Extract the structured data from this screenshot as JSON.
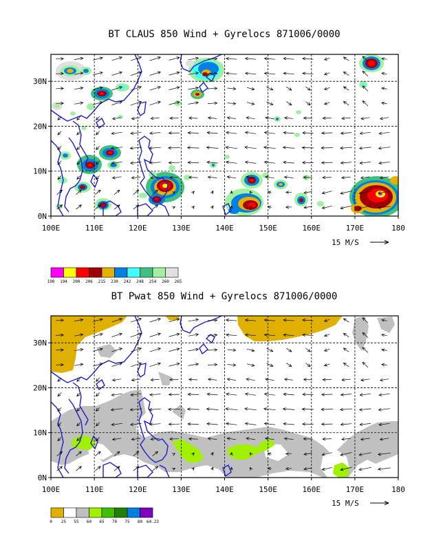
{
  "panels": [
    {
      "title": "BT CLAUS 850 Wind + Gyrelocs 871006/0000",
      "field": "brightness temperature (CLAUS)",
      "x_ticks": [
        "100E",
        "110E",
        "120E",
        "130E",
        "140E",
        "150E",
        "160E",
        "170E",
        "180"
      ],
      "y_ticks": [
        "0N",
        "10N",
        "20N",
        "30N"
      ],
      "vector_key": "15 M/S",
      "legend": {
        "levels": [
          "190",
          "194",
          "200",
          "206",
          "215",
          "230",
          "242",
          "248",
          "254",
          "260",
          "265"
        ],
        "colors": [
          "#ff00ff",
          "#ffff00",
          "#ff0000",
          "#a00000",
          "#e6b000",
          "#0080e0",
          "#40ffff",
          "#40c080",
          "#a0f0a0",
          "#e0e0e0"
        ]
      }
    },
    {
      "title": "BT Pwat 850 Wind + Gyrelocs 871006/0000",
      "field": "precipitable water",
      "x_ticks": [
        "100E",
        "110E",
        "120E",
        "130E",
        "140E",
        "150E",
        "160E",
        "170E",
        "180"
      ],
      "y_ticks": [
        "0N",
        "10N",
        "20N",
        "30N"
      ],
      "vector_key": "15 M/S",
      "legend": {
        "levels": [
          "0",
          "25",
          "55",
          "60",
          "65",
          "70",
          "75",
          "80",
          "64.23"
        ],
        "colors": [
          "#e0b000",
          "#ffffff",
          "#c0c0c0",
          "#a0f000",
          "#40c000",
          "#208000",
          "#0080e0",
          "#8000c0"
        ]
      }
    }
  ],
  "chart_data": [
    {
      "type": "heatmap",
      "title": "BT CLAUS 850 Wind + Gyrelocs 871006/0000",
      "xlim": [
        100,
        180
      ],
      "ylim": [
        0,
        36
      ],
      "xlabel": "",
      "ylabel": "",
      "x_ticks": [
        100,
        110,
        120,
        130,
        140,
        150,
        160,
        170,
        180
      ],
      "y_ticks": [
        0,
        10,
        20,
        30
      ],
      "colorbar_levels": [
        190,
        194,
        200,
        206,
        215,
        230,
        242,
        248,
        254,
        260,
        265
      ],
      "cold_cloud_regions": [
        {
          "lon": 104.5,
          "lat": 32,
          "min_bt": 215
        },
        {
          "lon": 108,
          "lat": 31,
          "min_bt": 206
        },
        {
          "lon": 111.5,
          "lat": 27.5,
          "min_bt": 200
        },
        {
          "lon": 114,
          "lat": 29,
          "min_bt": 230
        },
        {
          "lon": 109.5,
          "lat": 12,
          "min_bt": 206
        },
        {
          "lon": 113.5,
          "lat": 14.5,
          "min_bt": 206
        },
        {
          "lon": 106.5,
          "lat": 6.5,
          "min_bt": 215
        },
        {
          "lon": 112,
          "lat": 2.5,
          "min_bt": 206
        },
        {
          "lon": 126.5,
          "lat": 7,
          "min_bt": 194
        },
        {
          "lon": 124.5,
          "lat": 4.5,
          "min_bt": 200
        },
        {
          "lon": 137,
          "lat": 32.5,
          "min_bt": 206
        },
        {
          "lon": 134,
          "lat": 27,
          "min_bt": 215
        },
        {
          "lon": 144.5,
          "lat": 9,
          "min_bt": 206
        },
        {
          "lon": 146,
          "lat": 3.5,
          "min_bt": 200
        },
        {
          "lon": 155,
          "lat": 6.5,
          "min_bt": 215
        },
        {
          "lon": 158,
          "lat": 3.5,
          "min_bt": 206
        },
        {
          "lon": 173,
          "lat": 33.5,
          "min_bt": 200
        },
        {
          "lon": 174,
          "lat": 4.5,
          "min_bt": 200
        }
      ],
      "wind_vectors": "850 hPa wind",
      "vector_key": "15 M/S"
    },
    {
      "type": "heatmap",
      "title": "BT Pwat 850 Wind + Gyrelocs 871006/0000",
      "xlim": [
        100,
        180
      ],
      "ylim": [
        0,
        36
      ],
      "xlabel": "",
      "ylabel": "",
      "x_ticks": [
        100,
        110,
        120,
        130,
        140,
        150,
        160,
        170,
        180
      ],
      "y_ticks": [
        0,
        10,
        20,
        30
      ],
      "colorbar_levels": [
        0,
        25,
        55,
        60,
        65,
        70,
        75,
        80,
        64.23
      ],
      "regions": [
        {
          "lon": 101.5,
          "lat": 31,
          "category": "0-25"
        },
        {
          "lon": 148,
          "lat": 34,
          "category": "0-25"
        },
        {
          "lon": 140,
          "lat": 35.5,
          "category": "0-25"
        },
        {
          "lon": 110,
          "lat": 10,
          "category": "55-60"
        },
        {
          "lon": 135,
          "lat": 7,
          "category": "55-60"
        },
        {
          "lon": 150,
          "lat": 6,
          "category": "55-60"
        },
        {
          "lon": 171,
          "lat": 7,
          "category": "55-60"
        },
        {
          "lon": 108,
          "lat": 7.5,
          "category": "60-65"
        },
        {
          "lon": 131.5,
          "lat": 5.5,
          "category": "60-65"
        },
        {
          "lon": 149,
          "lat": 5.5,
          "category": "60-65"
        },
        {
          "lon": 166,
          "lat": 2,
          "category": "60-65"
        }
      ],
      "wind_vectors": "850 hPa wind",
      "vector_key": "15 M/S"
    }
  ]
}
